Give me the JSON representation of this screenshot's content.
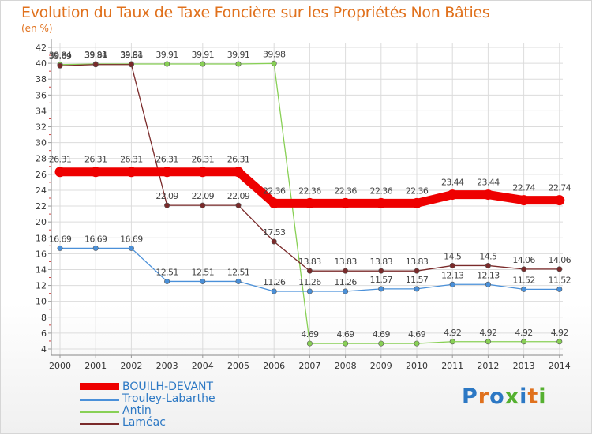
{
  "header": {
    "title": "Evolution du Taux de Taxe Foncière sur les Propriétés Non Bâties",
    "unit": "(en %)"
  },
  "chart_data": {
    "type": "line",
    "title": "Evolution du Taux de Taxe Foncière sur les Propriétés Non Bâties",
    "ylabel": "(en %)",
    "xlabel": "",
    "ylim": [
      4,
      42
    ],
    "grid": true,
    "categories": [
      "2000",
      "2001",
      "2002",
      "2003",
      "2004",
      "2005",
      "2006",
      "2007",
      "2008",
      "2009",
      "2010",
      "2011",
      "2012",
      "2013",
      "2014"
    ],
    "yticks": [
      "4",
      "6",
      "8",
      "10",
      "12",
      "14",
      "16",
      "18",
      "20",
      "22",
      "24",
      "26",
      "28",
      "30",
      "32",
      "34",
      "36",
      "38",
      "40",
      "42"
    ],
    "series": [
      {
        "name": "BOUILH-DEVANT",
        "color": "#ee0000",
        "values": [
          26.31,
          26.31,
          26.31,
          26.31,
          26.31,
          26.31,
          22.36,
          22.36,
          22.36,
          22.36,
          22.36,
          23.44,
          23.44,
          22.74,
          22.74
        ],
        "labels": [
          "26.31",
          "26.31",
          "26.31",
          "26.31",
          "26.31",
          "26.31",
          "22.36",
          "22.36",
          "22.36",
          "22.36",
          "22.36",
          "23.44",
          "23.44",
          "22.74",
          "22.74"
        ]
      },
      {
        "name": "Trouley-Labarthe",
        "color": "#4a90d9",
        "values": [
          16.69,
          16.69,
          16.69,
          12.51,
          12.51,
          12.51,
          11.26,
          11.26,
          11.26,
          11.57,
          11.57,
          12.13,
          12.13,
          11.52,
          11.52
        ],
        "labels": [
          "16.69",
          "16.69",
          "16.69",
          "12.51",
          "12.51",
          "12.51",
          "11.26",
          "11.26",
          "11.26",
          "11.57",
          "11.57",
          "12.13",
          "12.13",
          "11.52",
          "11.52"
        ]
      },
      {
        "name": "Antin",
        "color": "#88d055",
        "values": [
          39.84,
          39.91,
          39.91,
          39.91,
          39.91,
          39.91,
          39.98,
          4.69,
          4.69,
          4.69,
          4.69,
          4.92,
          4.92,
          4.92,
          4.92
        ],
        "labels": [
          "39.84",
          "39.91",
          "39.91",
          "39.91",
          "39.91",
          "39.91",
          "39.98",
          "4.69",
          "4.69",
          "4.69",
          "4.69",
          "4.92",
          "4.92",
          "4.92",
          "4.92"
        ]
      },
      {
        "name": "Laméac",
        "color": "#7a2a2a",
        "values": [
          39.69,
          39.84,
          39.84,
          22.09,
          22.09,
          22.09,
          17.53,
          13.83,
          13.83,
          13.83,
          13.83,
          14.5,
          14.5,
          14.06,
          14.06
        ],
        "labels": [
          "39.69",
          "39.84",
          "39.84",
          "22.09",
          "22.09",
          "22.09",
          "17.53",
          "13.83",
          "13.83",
          "13.83",
          "13.83",
          "14.5",
          "14.5",
          "14.06",
          "14.06"
        ]
      }
    ]
  },
  "legend": {
    "items": [
      {
        "label": "BOUILH-DEVANT",
        "color": "#ee0000"
      },
      {
        "label": "Trouley-Labarthe",
        "color": "#4a90d9"
      },
      {
        "label": "Antin",
        "color": "#88d055"
      },
      {
        "label": "Laméac",
        "color": "#7a2a2a"
      }
    ]
  },
  "logo": {
    "text": "Proxiti",
    "colors": [
      "#2c78c4",
      "#e0711d",
      "#2c78c4",
      "#55b030",
      "#2c78c4",
      "#e0711d",
      "#55b030"
    ]
  }
}
